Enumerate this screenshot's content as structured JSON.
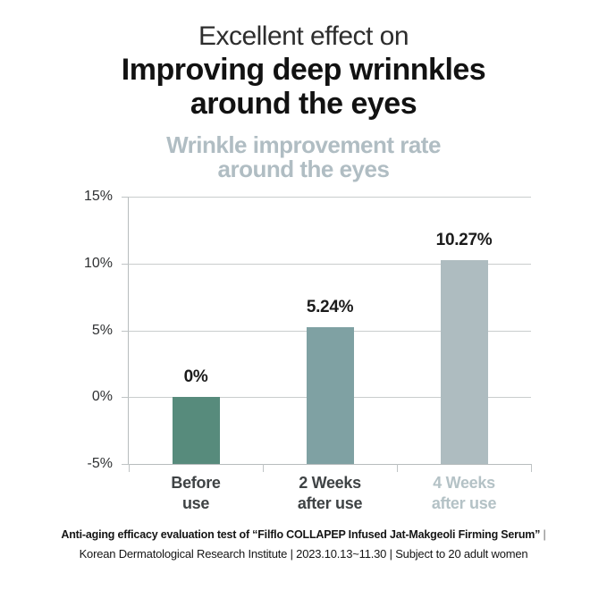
{
  "header": {
    "line1": "Excellent effect on",
    "line2": "Improving deep wrinnkles",
    "line3": "around the eyes"
  },
  "chart_data": {
    "type": "bar",
    "title": "Wrinkle improvement rate around the eyes",
    "title_lines": [
      "Wrinkle improvement rate",
      "around the eyes"
    ],
    "categories": [
      "Before use",
      "2 Weeks after use",
      "4 Weeks after use"
    ],
    "category_lines": [
      [
        "Before",
        "use"
      ],
      [
        "2 Weeks",
        "after use"
      ],
      [
        "4 Weeks",
        "after use"
      ]
    ],
    "values": [
      0,
      5.24,
      10.27
    ],
    "value_labels": [
      "0%",
      "5.24%",
      "10.27%"
    ],
    "bar_colors": [
      "#578b7c",
      "#7fa1a3",
      "#aebcc0"
    ],
    "category_label_colors": [
      "#3f4345",
      "#3f4345",
      "#b4c2c6"
    ],
    "ylim": [
      -5,
      15
    ],
    "yticks": [
      15,
      10,
      5,
      0,
      -5
    ],
    "ytick_labels": [
      "15%",
      "10%",
      "5%",
      "0%",
      "-5%"
    ],
    "grid": true,
    "legend_position": "none",
    "baseline": -5,
    "xlabel": "",
    "ylabel": ""
  },
  "footer": {
    "line1": "Anti-aging efficacy evaluation test of “Filflo COLLAPEP Infused Jat-Makgeoli Firming Serum”",
    "line1_separator": "|",
    "line2": "Korean Dermatological Research Institute | 2023.10.13~11.30 | Subject to 20 adult women"
  },
  "colors": {
    "accent_dark_bar": "#578b7c",
    "accent_mid_bar": "#7fa1a3",
    "accent_light_bar": "#aebcc0",
    "subtitle_text": "#b0bdc3",
    "gridline": "#c9cdcd",
    "axis": "#b7bcbd"
  }
}
